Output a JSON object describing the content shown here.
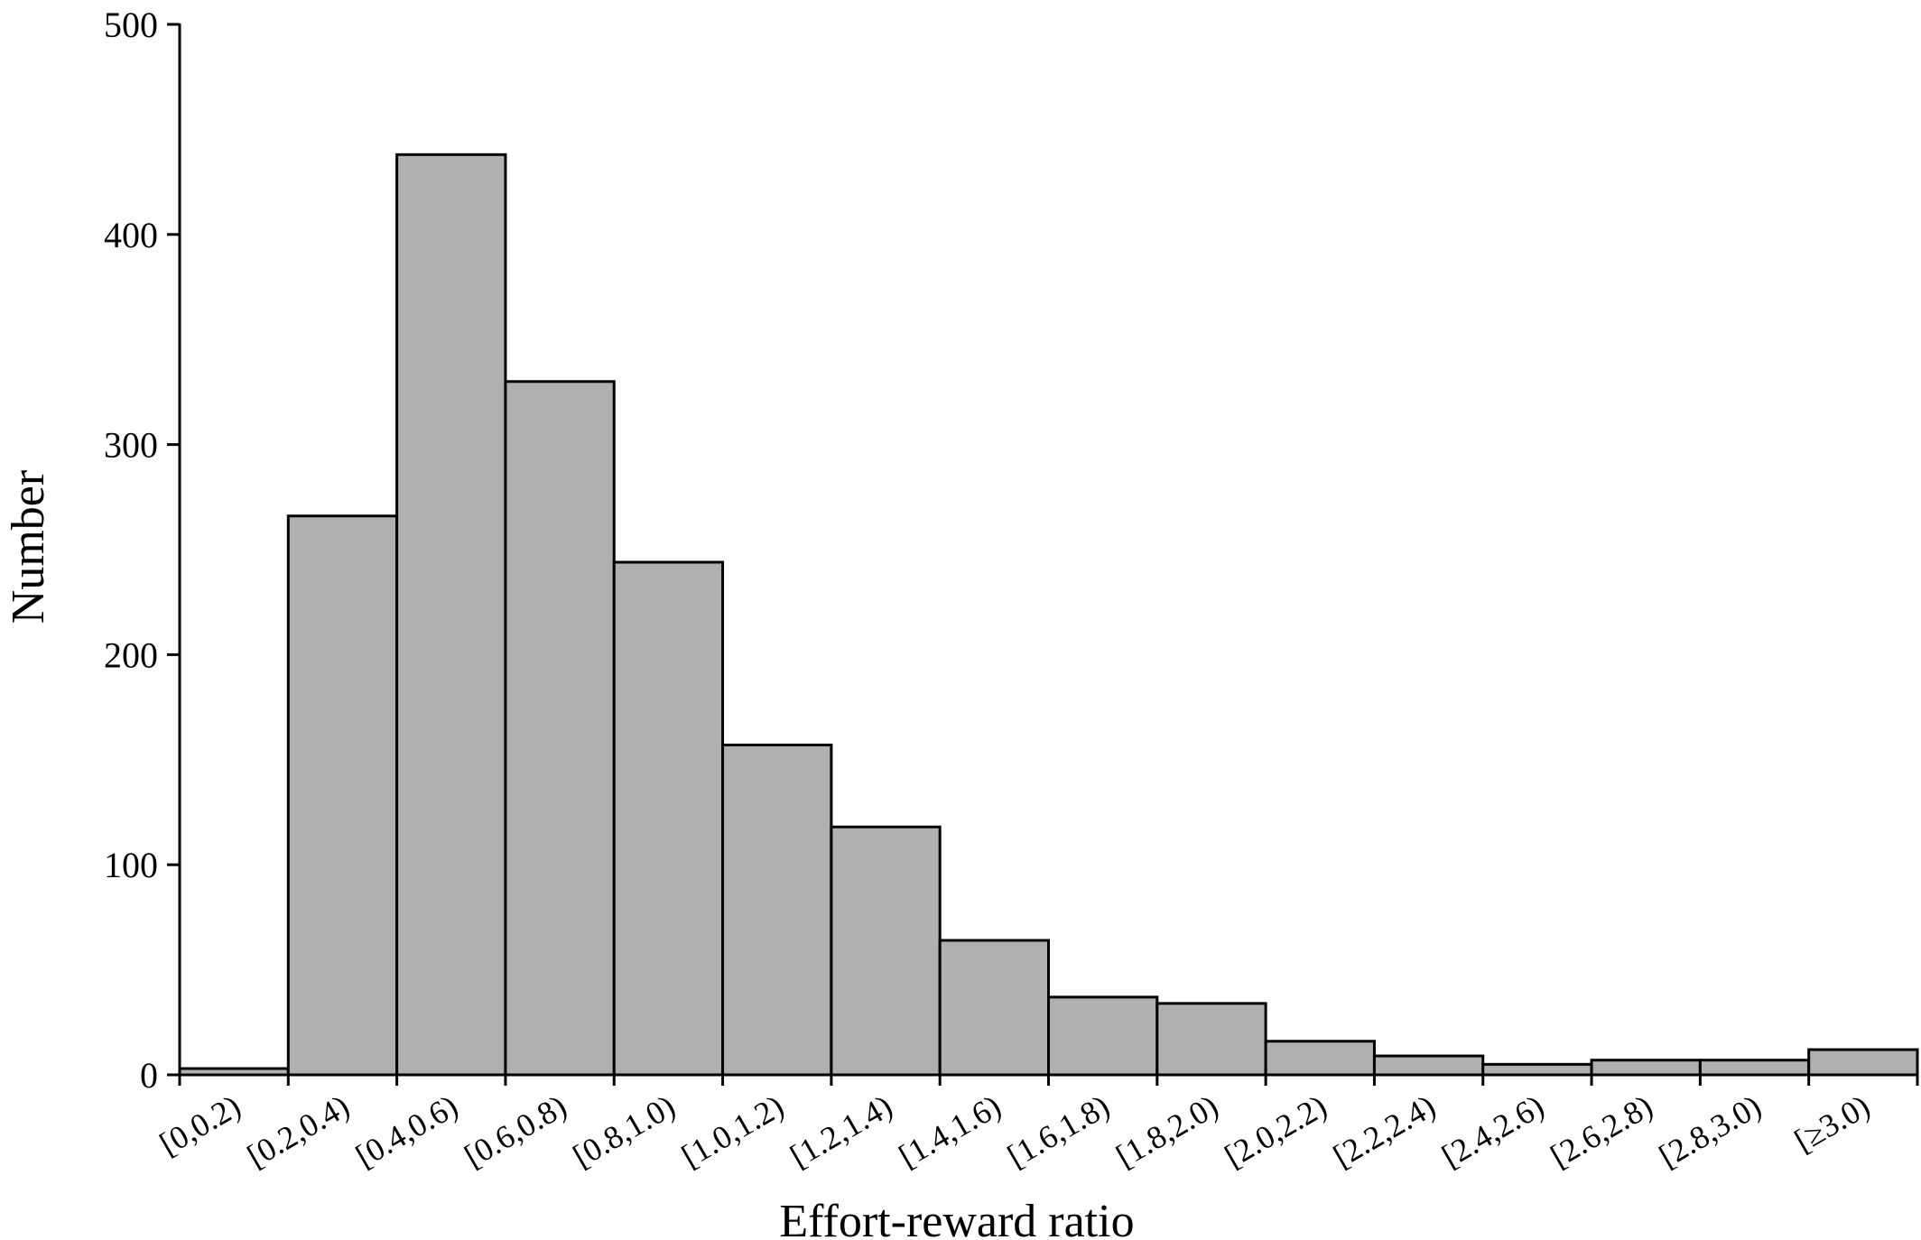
{
  "chart_data": {
    "type": "bar",
    "categories": [
      "[0,0.2)",
      "[0.2,0.4)",
      "[0.4,0.6)",
      "[0.6,0.8)",
      "[0.8,1.0)",
      "[1.0,1.2)",
      "[1.2,1.4)",
      "[1.4,1.6)",
      "[1.6,1.8)",
      "[1.8,2.0)",
      "[2.0,2.2)",
      "[2.2,2.4)",
      "[2.4,2.6)",
      "[2.6,2.8)",
      "[2.8,3.0)",
      "[≥3.0)"
    ],
    "values": [
      3,
      266,
      438,
      330,
      244,
      157,
      118,
      64,
      37,
      34,
      16,
      9,
      5,
      7,
      7,
      12
    ],
    "xlabel": "Effort-reward ratio",
    "ylabel": "Number",
    "ylim": [
      0,
      500
    ],
    "yticks": [
      0,
      100,
      200,
      300,
      400,
      500
    ],
    "grid": false,
    "legend": "none",
    "bar_color": "#b0b0b0",
    "edge_color": "#000000"
  }
}
